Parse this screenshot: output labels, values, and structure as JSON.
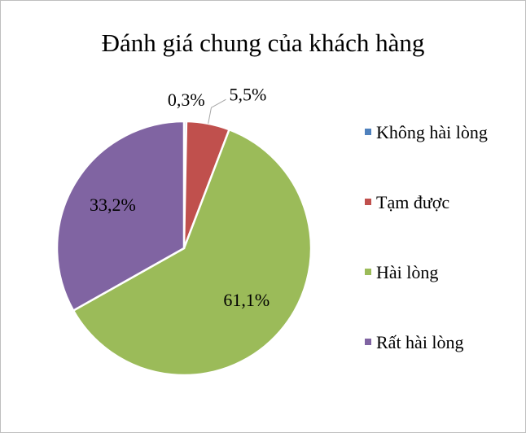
{
  "chart_data": {
    "type": "pie",
    "title": "Đánh giá chung của khách hàng",
    "categories": [
      "Không hài lòng",
      "Tạm được",
      "Hài lòng",
      "Rất hài lòng"
    ],
    "values": [
      0.3,
      5.5,
      61.1,
      33.2
    ],
    "value_labels": [
      "0,3%",
      "5,5%",
      "61,1%",
      "33,2%"
    ],
    "colors": [
      "#4f81bd",
      "#c0504d",
      "#9bbb59",
      "#8064a2"
    ],
    "legend": "right"
  }
}
